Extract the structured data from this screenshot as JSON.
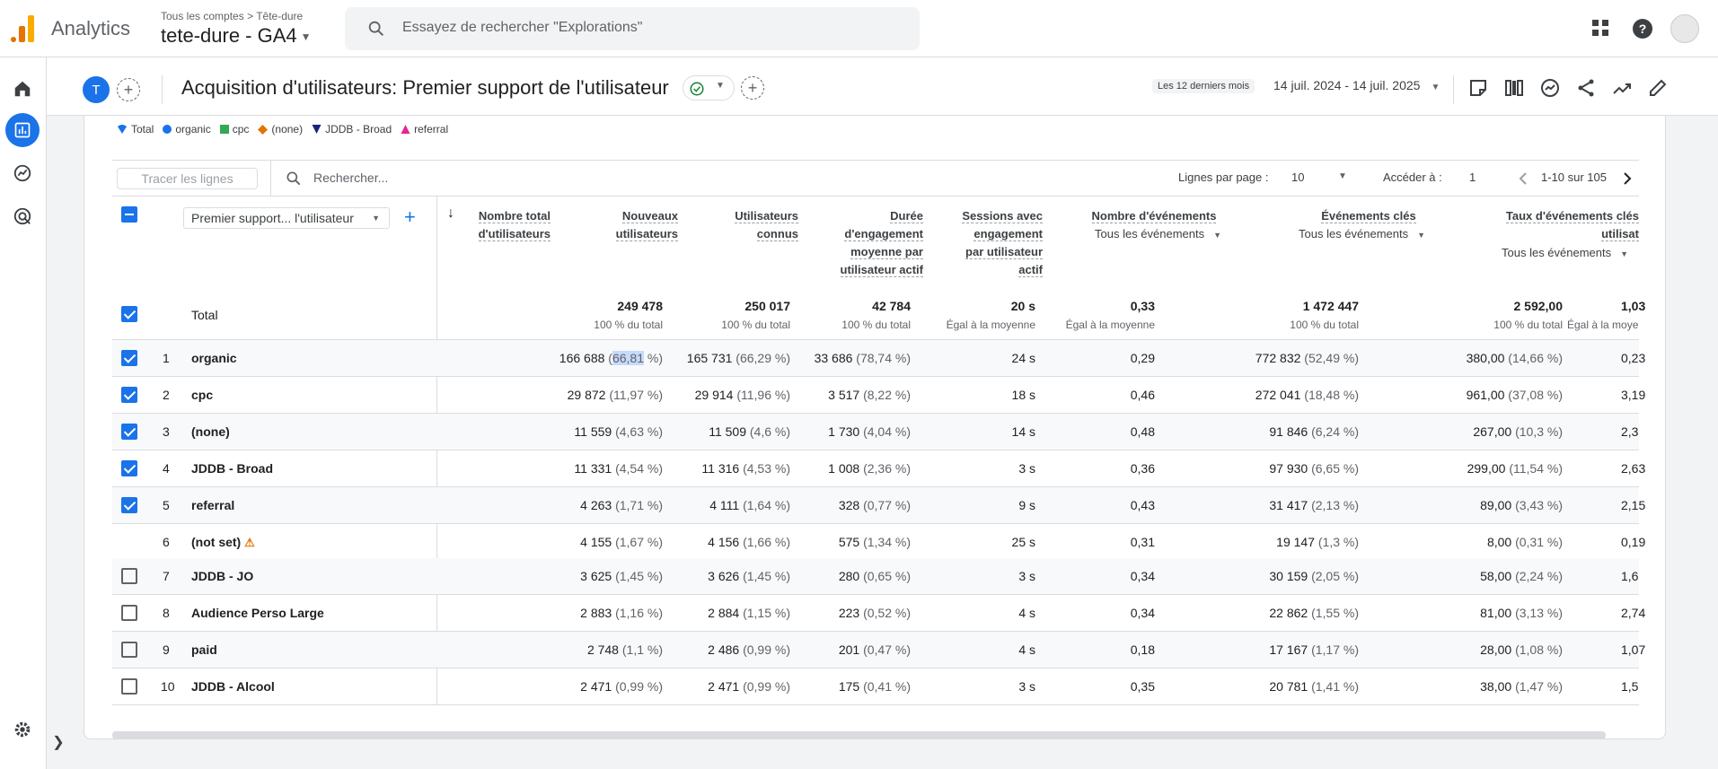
{
  "app": {
    "name": "Analytics",
    "breadcrumb_root": "Tous les comptes",
    "breadcrumb_sep": ">",
    "breadcrumb_account": "Tête-dure",
    "property": "tete-dure  - GA4"
  },
  "search": {
    "placeholder": "Essayez de rechercher \"Explorations\""
  },
  "header": {
    "avatar_letter": "T",
    "title": "Acquisition d'utilisateurs: Premier support de l'utilisateur",
    "date_label": "Les 12 derniers mois",
    "date_range": "14 juil. 2024 - 14 juil. 2025"
  },
  "legend": [
    {
      "label": "Total",
      "color": "#1a73e8",
      "shape": "pin"
    },
    {
      "label": "organic",
      "color": "#1a73e8",
      "shape": "circle"
    },
    {
      "label": "cpc",
      "color": "#34a853",
      "shape": "square"
    },
    {
      "label": "(none)",
      "color": "#e37400",
      "shape": "diamond"
    },
    {
      "label": "JDDB - Broad",
      "color": "#1a237e",
      "shape": "triangle-down"
    },
    {
      "label": "referral",
      "color": "#e52592",
      "shape": "triangle-up"
    }
  ],
  "toolbar": {
    "trace_button": "Tracer les lignes",
    "search_placeholder": "Rechercher...",
    "rows_per_page_label": "Lignes par page :",
    "rows_per_page": "10",
    "goto_label": "Accéder à :",
    "goto_value": "1",
    "pagination": "1-10 sur 105"
  },
  "table": {
    "dimension": "Premier support... l'utilisateur",
    "columns": [
      {
        "title_l1": "Nombre total",
        "title_l2": "d'utilisateurs"
      },
      {
        "title_l1": "Nouveaux",
        "title_l2": "utilisateurs"
      },
      {
        "title_l1": "Utilisateurs",
        "title_l2": "connus"
      },
      {
        "title_l1": "Durée",
        "title_l2": "d'engagement",
        "title_l3": "moyenne par",
        "title_l4": "utilisateur actif"
      },
      {
        "title_l1": "Sessions avec",
        "title_l2": "engagement",
        "title_l3": "par utilisateur",
        "title_l4": "actif"
      },
      {
        "title_l1": "Nombre d'événements",
        "filter": "Tous les événements"
      },
      {
        "title_l1": "Événements clés",
        "filter": "Tous les événements"
      },
      {
        "title_l1": "Taux d'événements clés",
        "title_l2": "utilisat",
        "filter": "Tous les événements"
      }
    ],
    "total": {
      "label": "Total",
      "values": [
        "249 478",
        "250 017",
        "42 784",
        "20 s",
        "0,33",
        "1 472 447",
        "2 592,00",
        "1,03"
      ],
      "subs": [
        "100 % du total",
        "100 % du total",
        "100 % du total",
        "Égal à la moyenne",
        "Égal à la moyenne",
        "100 % du total",
        "100 % du total",
        "Égal à la moye"
      ]
    },
    "rows": [
      {
        "rank": "1",
        "name": "organic",
        "checked": true,
        "c1": "166 688",
        "c1p_a": "(",
        "c1p_hl": "66,81",
        "c1p_b": " %)",
        "c2": "165 731",
        "c2p": "(66,29 %)",
        "c3": "33 686",
        "c3p": "(78,74 %)",
        "c4": "24 s",
        "c5": "0,29",
        "c6": "772 832",
        "c6p": "(52,49 %)",
        "c7": "380,00",
        "c7p": "(14,66 %)",
        "c8": "0,23"
      },
      {
        "rank": "2",
        "name": "cpc",
        "checked": true,
        "c1": "29 872",
        "c1p": "(11,97 %)",
        "c2": "29 914",
        "c2p": "(11,96 %)",
        "c3": "3 517",
        "c3p": "(8,22 %)",
        "c4": "18 s",
        "c5": "0,46",
        "c6": "272 041",
        "c6p": "(18,48 %)",
        "c7": "961,00",
        "c7p": "(37,08 %)",
        "c8": "3,19"
      },
      {
        "rank": "3",
        "name": "(none)",
        "checked": true,
        "c1": "11 559",
        "c1p": "(4,63 %)",
        "c2": "11 509",
        "c2p": "(4,6 %)",
        "c3": "1 730",
        "c3p": "(4,04 %)",
        "c4": "14 s",
        "c5": "0,48",
        "c6": "91 846",
        "c6p": "(6,24 %)",
        "c7": "267,00",
        "c7p": "(10,3 %)",
        "c8": "2,3"
      },
      {
        "rank": "4",
        "name": "JDDB - Broad",
        "checked": true,
        "c1": "11 331",
        "c1p": "(4,54 %)",
        "c2": "11 316",
        "c2p": "(4,53 %)",
        "c3": "1 008",
        "c3p": "(2,36 %)",
        "c4": "3 s",
        "c5": "0,36",
        "c6": "97 930",
        "c6p": "(6,65 %)",
        "c7": "299,00",
        "c7p": "(11,54 %)",
        "c8": "2,63"
      },
      {
        "rank": "5",
        "name": "referral",
        "checked": true,
        "c1": "4 263",
        "c1p": "(1,71 %)",
        "c2": "4 111",
        "c2p": "(1,64 %)",
        "c3": "328",
        "c3p": "(0,77 %)",
        "c4": "9 s",
        "c5": "0,43",
        "c6": "31 417",
        "c6p": "(2,13 %)",
        "c7": "89,00",
        "c7p": "(3,43 %)",
        "c8": "2,15"
      },
      {
        "rank": "6",
        "name": "(not set)",
        "checked": null,
        "warning": true,
        "c1": "4 155",
        "c1p": "(1,67 %)",
        "c2": "4 156",
        "c2p": "(1,66 %)",
        "c3": "575",
        "c3p": "(1,34 %)",
        "c4": "25 s",
        "c5": "0,31",
        "c6": "19 147",
        "c6p": "(1,3 %)",
        "c7": "8,00",
        "c7p": "(0,31 %)",
        "c8": "0,19"
      },
      {
        "rank": "7",
        "name": "JDDB - JO",
        "checked": false,
        "c1": "3 625",
        "c1p": "(1,45 %)",
        "c2": "3 626",
        "c2p": "(1,45 %)",
        "c3": "280",
        "c3p": "(0,65 %)",
        "c4": "3 s",
        "c5": "0,34",
        "c6": "30 159",
        "c6p": "(2,05 %)",
        "c7": "58,00",
        "c7p": "(2,24 %)",
        "c8": "1,6"
      },
      {
        "rank": "8",
        "name": "Audience Perso Large",
        "checked": false,
        "c1": "2 883",
        "c1p": "(1,16 %)",
        "c2": "2 884",
        "c2p": "(1,15 %)",
        "c3": "223",
        "c3p": "(0,52 %)",
        "c4": "4 s",
        "c5": "0,34",
        "c6": "22 862",
        "c6p": "(1,55 %)",
        "c7": "81,00",
        "c7p": "(3,13 %)",
        "c8": "2,74"
      },
      {
        "rank": "9",
        "name": "paid",
        "checked": false,
        "c1": "2 748",
        "c1p": "(1,1 %)",
        "c2": "2 486",
        "c2p": "(0,99 %)",
        "c3": "201",
        "c3p": "(0,47 %)",
        "c4": "4 s",
        "c5": "0,18",
        "c6": "17 167",
        "c6p": "(1,17 %)",
        "c7": "28,00",
        "c7p": "(1,08 %)",
        "c8": "1,07"
      },
      {
        "rank": "10",
        "name": "JDDB - Alcool",
        "checked": false,
        "c1": "2 471",
        "c1p": "(0,99 %)",
        "c2": "2 471",
        "c2p": "(0,99 %)",
        "c3": "175",
        "c3p": "(0,41 %)",
        "c4": "3 s",
        "c5": "0,35",
        "c6": "20 781",
        "c6p": "(1,41 %)",
        "c7": "38,00",
        "c7p": "(1,47 %)",
        "c8": "1,5"
      }
    ]
  }
}
